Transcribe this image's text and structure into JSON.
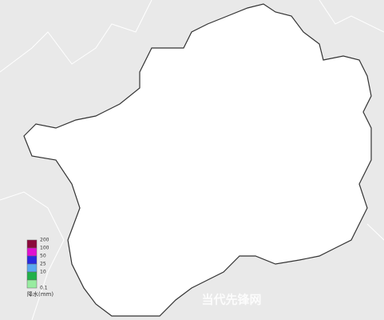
{
  "legend": {
    "title": "降水(mm)",
    "items": [
      {
        "label": "200",
        "color": "#8b0a3a"
      },
      {
        "label": "100",
        "color": "#e010d0"
      },
      {
        "label": "50",
        "color": "#2a2ae0"
      },
      {
        "label": "25",
        "color": "#5aa8f0"
      },
      {
        "label": "10",
        "color": "#22b04a"
      },
      {
        "label": "0.1",
        "color": "#98eca0"
      }
    ]
  },
  "watermark": "当代先锋网"
}
